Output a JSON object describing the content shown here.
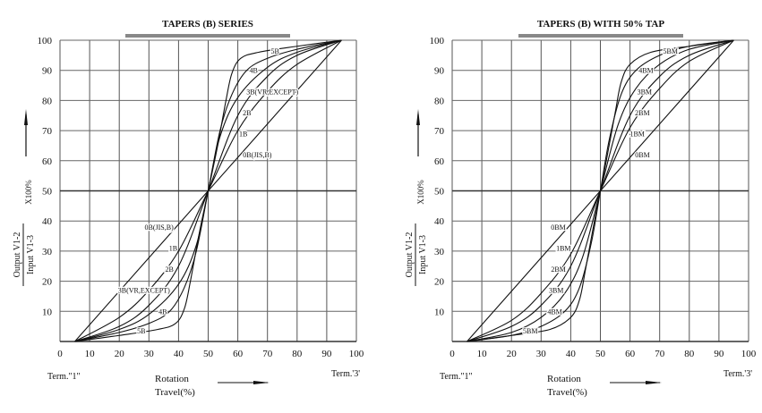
{
  "chart_data": [
    {
      "type": "line",
      "title": "TAPERS (B) SERIES",
      "xlabel": "Rotation Travel(%)",
      "ylabel_numerator": "Output V1-2",
      "ylabel_denominator": "Input V1-3",
      "ylabel_factor": "X100%",
      "term_start": "Term.\"1\"",
      "term_end": "Term.'3'",
      "xlim": [
        0,
        100
      ],
      "ylim": [
        0,
        100
      ],
      "xticks": [
        0,
        10,
        20,
        30,
        40,
        50,
        60,
        70,
        80,
        90,
        100
      ],
      "yticks": [
        10,
        20,
        30,
        40,
        50,
        60,
        70,
        80,
        90,
        100
      ],
      "grid": true,
      "series": [
        {
          "name": "0B(JIS,B)",
          "lower_half": [
            [
              5,
              0
            ],
            [
              50,
              50
            ]
          ]
        },
        {
          "name": "1B",
          "lower_half": [
            [
              5,
              0
            ],
            [
              20,
              8
            ],
            [
              30,
              17
            ],
            [
              40,
              30
            ],
            [
              50,
              50
            ]
          ]
        },
        {
          "name": "2B",
          "lower_half": [
            [
              5,
              0
            ],
            [
              20,
              5
            ],
            [
              30,
              12
            ],
            [
              40,
              25
            ],
            [
              50,
              50
            ]
          ]
        },
        {
          "name": "3B(VR,EXCEPT)",
          "lower_half": [
            [
              5,
              0
            ],
            [
              20,
              4
            ],
            [
              30,
              9
            ],
            [
              40,
              19
            ],
            [
              46,
              32
            ],
            [
              50,
              50
            ]
          ]
        },
        {
          "name": "4B",
          "lower_half": [
            [
              5,
              0
            ],
            [
              20,
              3
            ],
            [
              30,
              6
            ],
            [
              37,
              10
            ],
            [
              42,
              18
            ],
            [
              46,
              30
            ],
            [
              50,
              50
            ]
          ]
        },
        {
          "name": "5B",
          "lower_half": [
            [
              5,
              0
            ],
            [
              20,
              2
            ],
            [
              33,
              4
            ],
            [
              39,
              6
            ],
            [
              42,
              11
            ],
            [
              44,
              20
            ],
            [
              47,
              36
            ],
            [
              50,
              50
            ]
          ]
        }
      ]
    },
    {
      "type": "line",
      "title": "TAPERS (B) WITH 50% TAP",
      "xlabel": "Rotation Travel(%)",
      "ylabel_numerator": "Output V1-2",
      "ylabel_denominator": "Input V1-3",
      "ylabel_factor": "X100%",
      "term_start": "Term.\"1\"",
      "term_end": "Term.'3'",
      "xlim": [
        0,
        100
      ],
      "ylim": [
        0,
        100
      ],
      "xticks": [
        0,
        10,
        20,
        30,
        40,
        50,
        60,
        70,
        80,
        90,
        100
      ],
      "yticks": [
        10,
        20,
        30,
        40,
        50,
        60,
        70,
        80,
        90,
        100
      ],
      "grid": true,
      "series": [
        {
          "name": "0BM",
          "lower_half": [
            [
              5,
              0
            ],
            [
              50,
              50
            ]
          ]
        },
        {
          "name": "1BM",
          "lower_half": [
            [
              5,
              0
            ],
            [
              20,
              7
            ],
            [
              30,
              16
            ],
            [
              40,
              29
            ],
            [
              50,
              50
            ]
          ]
        },
        {
          "name": "2BM",
          "lower_half": [
            [
              5,
              0
            ],
            [
              20,
              5
            ],
            [
              30,
              12
            ],
            [
              40,
              25
            ],
            [
              50,
              50
            ]
          ]
        },
        {
          "name": "3BM",
          "lower_half": [
            [
              5,
              0
            ],
            [
              20,
              3
            ],
            [
              30,
              8
            ],
            [
              38,
              16
            ],
            [
              44,
              28
            ],
            [
              50,
              50
            ]
          ]
        },
        {
          "name": "4BM",
          "lower_half": [
            [
              5,
              0
            ],
            [
              20,
              2
            ],
            [
              30,
              5
            ],
            [
              38,
              10
            ],
            [
              43,
              18
            ],
            [
              47,
              33
            ],
            [
              50,
              50
            ]
          ]
        },
        {
          "name": "5BM",
          "lower_half": [
            [
              5,
              0
            ],
            [
              20,
              2
            ],
            [
              33,
              4
            ],
            [
              40,
              8
            ],
            [
              43,
              14
            ],
            [
              45,
              24
            ],
            [
              48,
              40
            ],
            [
              50,
              50
            ]
          ]
        }
      ]
    }
  ]
}
